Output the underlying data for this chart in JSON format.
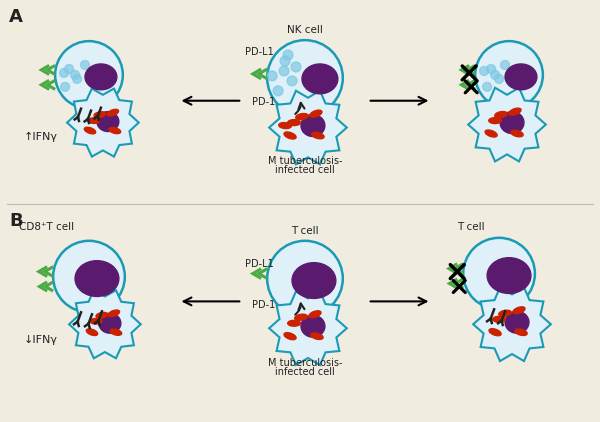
{
  "bg_color": "#f0ece0",
  "cell_outline": "#1a9ab5",
  "nucleus_color": "#5a1a6e",
  "bacteria_color": "#cc2200",
  "small_dots_color": "#7ec8e3",
  "green_arrow_color": "#4aaa44",
  "black_receptor_color": "#222222",
  "text_color": "#222222",
  "panel_A_label": "A",
  "panel_B_label": "B",
  "nk_cell_label": "NK cell",
  "pd_l1_label": "PD-L1",
  "pd_1_label": "PD-1",
  "mtb_label1": "M tuberculosis-",
  "mtb_label2": "infected cell",
  "ifn_up_label": "↑IFNγ",
  "ifn_down_label": "↓IFNγ",
  "cd8_label": "CD8⁺T cell",
  "t_cell_label": "T cell"
}
